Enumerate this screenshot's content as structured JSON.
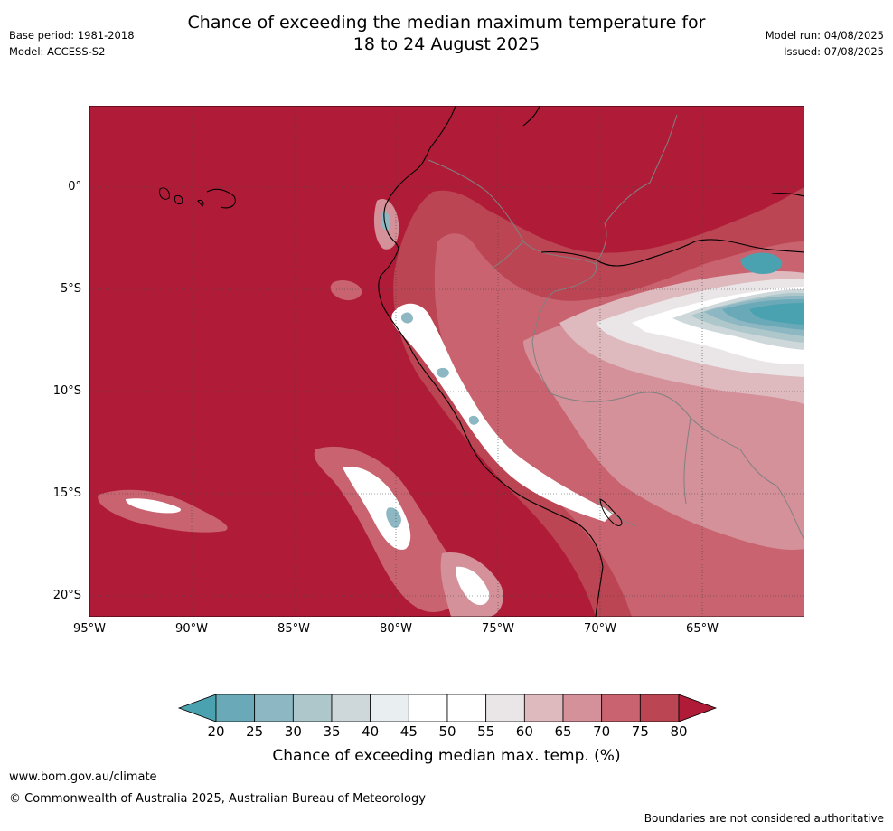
{
  "header": {
    "title_line1": "Chance of exceeding the median maximum temperature for",
    "title_line2": "18 to 24 August 2025",
    "base_period": "Base period: 1981-2018",
    "model": "Model: ACCESS-S2",
    "model_run": "Model run: 04/08/2025",
    "issued": "Issued: 07/08/2025"
  },
  "map": {
    "lat_labels": [
      "0°",
      "5°S",
      "10°S",
      "15°S",
      "20°S"
    ],
    "lon_labels": [
      "95°W",
      "90°W",
      "85°W",
      "80°W",
      "75°W",
      "70°W",
      "65°W"
    ],
    "extent": {
      "lon_min": -95,
      "lon_max": -60,
      "lat_min": -21,
      "lat_max": 4
    },
    "dominant_category": "80+"
  },
  "colorbar": {
    "ticks": [
      "20",
      "25",
      "30",
      "35",
      "40",
      "45",
      "50",
      "55",
      "60",
      "65",
      "70",
      "75",
      "80"
    ],
    "colors": [
      "#4aa2b0",
      "#6aaab8",
      "#8db7c2",
      "#adc7cb",
      "#ced8da",
      "#e9eef0",
      "#ffffff",
      "#ffffff",
      "#eae6e8",
      "#deb9be",
      "#d4919a",
      "#c8636f",
      "#bb4553",
      "#b01c38"
    ],
    "label": "Chance of exceeding median max. temp. (%)"
  },
  "footer": {
    "url": "www.bom.gov.au/climate",
    "copyright": "© Commonwealth of Australia 2025, Australian Bureau of Meteorology",
    "disclaimer": "Boundaries are not considered authoritative"
  }
}
